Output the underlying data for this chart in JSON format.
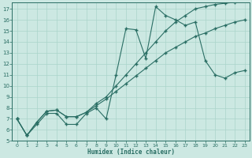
{
  "xlabel": "Humidex (Indice chaleur)",
  "bg_color": "#cce8e2",
  "grid_color": "#aad4ca",
  "line_color": "#2a6e64",
  "xlim": [
    -0.5,
    23.5
  ],
  "ylim": [
    5.0,
    17.6
  ],
  "yticks": [
    5,
    6,
    7,
    8,
    9,
    10,
    11,
    12,
    13,
    14,
    15,
    16,
    17
  ],
  "xticks": [
    0,
    1,
    2,
    3,
    4,
    5,
    6,
    7,
    8,
    9,
    10,
    11,
    12,
    13,
    14,
    15,
    16,
    17,
    18,
    19,
    20,
    21,
    22,
    23
  ],
  "line1_y": [
    7.0,
    5.5,
    6.5,
    7.5,
    7.5,
    6.5,
    6.5,
    7.5,
    8.0,
    7.0,
    11.0,
    15.2,
    15.1,
    12.5,
    17.2,
    16.4,
    16.0,
    15.5,
    15.8,
    12.3,
    11.0,
    10.7,
    11.2,
    11.4
  ],
  "line2_y": [
    7.0,
    5.5,
    6.7,
    7.7,
    7.8,
    7.2,
    7.2,
    7.6,
    8.2,
    8.8,
    9.5,
    10.2,
    10.9,
    11.6,
    12.3,
    13.0,
    13.5,
    14.0,
    14.5,
    14.8,
    15.2,
    15.5,
    15.8,
    16.0
  ],
  "line3_y": [
    7.0,
    5.5,
    6.7,
    7.7,
    7.8,
    7.2,
    7.2,
    7.6,
    8.4,
    9.0,
    10.0,
    11.0,
    12.0,
    13.0,
    14.0,
    15.0,
    15.8,
    16.4,
    17.0,
    17.2,
    17.4,
    17.5,
    17.6,
    17.8
  ]
}
